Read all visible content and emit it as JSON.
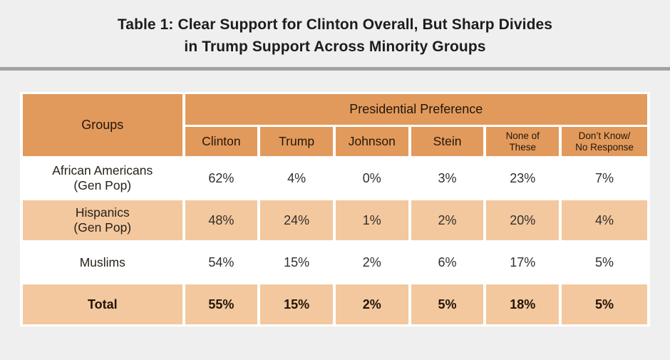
{
  "title": {
    "text": "Table 1: Clear Support for Clinton Overall, But Sharp Divides\nin Trump Support Across Minority Groups"
  },
  "display": {
    "groups_header": "Groups",
    "preference_header": "Presidential Preference",
    "col_clinton": "Clinton",
    "col_trump": "Trump",
    "col_johnson": "Johnson",
    "col_stein": "Stein",
    "col_none": "None of\nThese",
    "col_dk": "Don’t Know/\nNo Response",
    "row_african_americans": "African Americans\n(Gen Pop)",
    "row_hispanics": "Hispanics\n(Gen Pop)",
    "row_muslims": "Muslims",
    "row_total": "Total"
  },
  "colors": {
    "header_orange": "#e29a5c",
    "row_tint_orange": "#f3c89e",
    "page_background": "#efefef",
    "divider_gray": "#a3a3a3",
    "cell_gap_white": "#ffffff",
    "text_dark": "#1c1c1c"
  },
  "chart_data": {
    "type": "table",
    "title": "Table 1: Clear Support for Clinton Overall, But Sharp Divides in Trump Support Across Minority Groups",
    "row_header": "Groups",
    "column_group_header": "Presidential Preference",
    "columns": [
      "Clinton",
      "Trump",
      "Johnson",
      "Stein",
      "None of These",
      "Don't Know/No Response"
    ],
    "rows": [
      {
        "group": "African Americans (Gen Pop)",
        "values": [
          "62%",
          "4%",
          "0%",
          "3%",
          "23%",
          "7%"
        ]
      },
      {
        "group": "Hispanics (Gen Pop)",
        "values": [
          "48%",
          "24%",
          "1%",
          "2%",
          "20%",
          "4%"
        ]
      },
      {
        "group": "Muslims",
        "values": [
          "54%",
          "15%",
          "2%",
          "6%",
          "17%",
          "5%"
        ]
      },
      {
        "group": "Total",
        "values": [
          "55%",
          "15%",
          "2%",
          "5%",
          "18%",
          "5%"
        ]
      }
    ]
  }
}
